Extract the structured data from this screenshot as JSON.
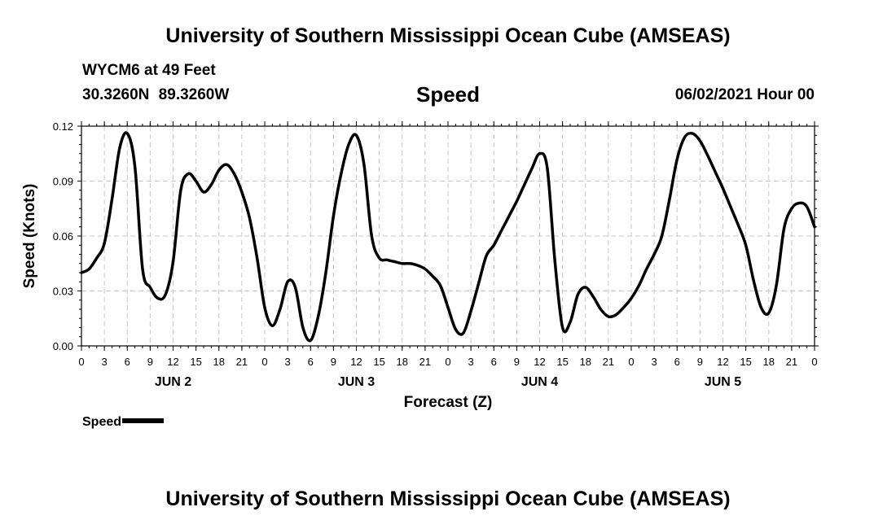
{
  "header": {
    "title": "University of Southern Mississippi Ocean Cube (AMSEAS)",
    "station": "WYCM6 at 49 Feet",
    "coords": "30.3260N  89.3260W",
    "plot_title": "Speed",
    "datetime": "06/02/2021 Hour 00"
  },
  "footer": {
    "title": "University of Southern Mississippi Ocean Cube (AMSEAS)"
  },
  "legend": {
    "label": "Speed",
    "color": "#000000"
  },
  "chart_data": {
    "type": "line",
    "xlabel": "Forecast (Z)",
    "ylabel": "Speed (Knots)",
    "ylim": [
      0,
      0.12
    ],
    "yticks": [
      "0.00",
      "0.03",
      "0.06",
      "0.09",
      "0.12"
    ],
    "xlim": [
      0,
      96
    ],
    "xtick_labels": [
      "0",
      "3",
      "6",
      "9",
      "12",
      "15",
      "18",
      "21",
      "0",
      "3",
      "6",
      "9",
      "12",
      "15",
      "18",
      "21",
      "0",
      "3",
      "6",
      "9",
      "12",
      "15",
      "18",
      "21",
      "0",
      "3",
      "6",
      "9",
      "12",
      "15",
      "18",
      "21",
      "0"
    ],
    "day_labels": [
      "JUN 2",
      "JUN 3",
      "JUN 4",
      "JUN 5"
    ],
    "grid": true,
    "series": [
      {
        "name": "Speed",
        "color": "#000000",
        "x": [
          0,
          1,
          2,
          3,
          4,
          5,
          6,
          7,
          8,
          9,
          10,
          11,
          12,
          13,
          14,
          15,
          16,
          17,
          18,
          19,
          20,
          21,
          22,
          23,
          24,
          25,
          26,
          27,
          28,
          29,
          30,
          31,
          32,
          33,
          34,
          35,
          36,
          37,
          38,
          39,
          40,
          41,
          42,
          43,
          44,
          45,
          46,
          47,
          48,
          49,
          50,
          51,
          52,
          53,
          54,
          55,
          56,
          57,
          58,
          59,
          60,
          61,
          62,
          63,
          64,
          65,
          66,
          67,
          68,
          69,
          70,
          71,
          72,
          73,
          74,
          75,
          76,
          77,
          78,
          79,
          80,
          81,
          82,
          83,
          84,
          85,
          86,
          87,
          88,
          89,
          90,
          91,
          92,
          93,
          94,
          95,
          96
        ],
        "values": [
          0.04,
          0.042,
          0.048,
          0.056,
          0.08,
          0.108,
          0.116,
          0.098,
          0.042,
          0.032,
          0.026,
          0.028,
          0.046,
          0.085,
          0.094,
          0.09,
          0.084,
          0.088,
          0.096,
          0.099,
          0.094,
          0.084,
          0.07,
          0.048,
          0.021,
          0.011,
          0.02,
          0.035,
          0.032,
          0.01,
          0.003,
          0.016,
          0.04,
          0.071,
          0.094,
          0.11,
          0.115,
          0.099,
          0.06,
          0.048,
          0.047,
          0.046,
          0.045,
          0.045,
          0.044,
          0.042,
          0.038,
          0.033,
          0.021,
          0.009,
          0.007,
          0.019,
          0.034,
          0.049,
          0.055,
          0.063,
          0.071,
          0.079,
          0.088,
          0.097,
          0.105,
          0.097,
          0.046,
          0.01,
          0.013,
          0.028,
          0.032,
          0.027,
          0.02,
          0.016,
          0.017,
          0.021,
          0.026,
          0.033,
          0.042,
          0.05,
          0.06,
          0.08,
          0.102,
          0.114,
          0.116,
          0.112,
          0.104,
          0.095,
          0.086,
          0.076,
          0.066,
          0.055,
          0.036,
          0.021,
          0.018,
          0.033,
          0.064,
          0.075,
          0.078,
          0.076,
          0.065
        ]
      }
    ]
  }
}
